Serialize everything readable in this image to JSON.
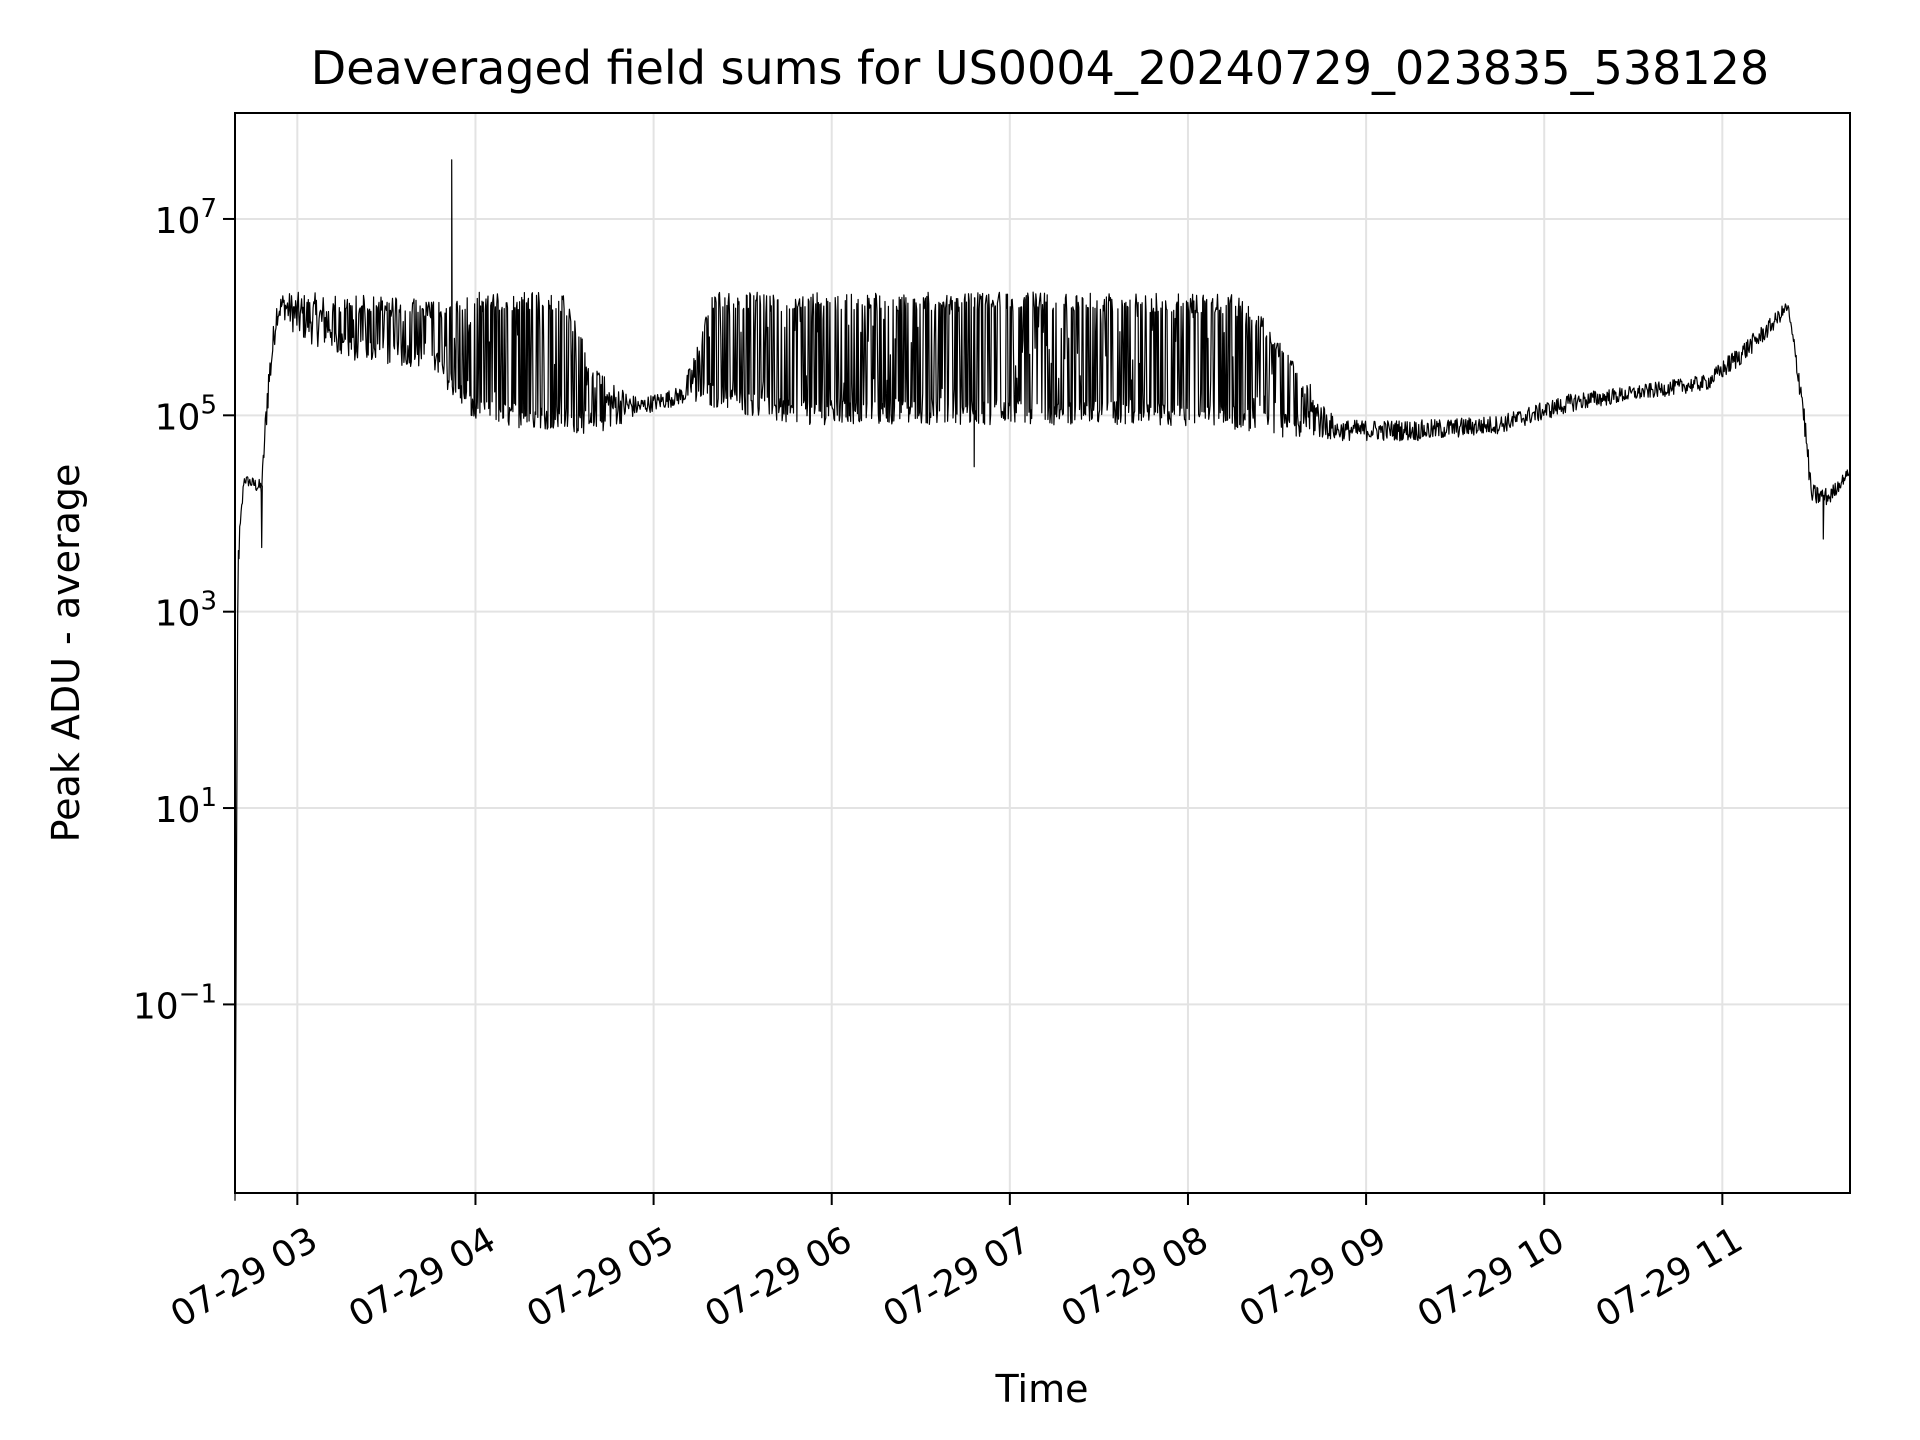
{
  "chart_data": {
    "type": "line",
    "title": "Deaveraged field sums for US0004_20240729_023835_538128",
    "xlabel": "Time",
    "ylabel": "Peak ADU - average",
    "yscale": "log",
    "ylim": [
      0.0012,
      120000000
    ],
    "xlim": [
      "2024-07-29 02:39",
      "2024-07-29 11:43"
    ],
    "grid": true,
    "line_color": "#000000",
    "x_ticks": [
      {
        "value": "2024-07-29 03:00",
        "label": "07-29 03"
      },
      {
        "value": "2024-07-29 04:00",
        "label": "07-29 04"
      },
      {
        "value": "2024-07-29 05:00",
        "label": "07-29 05"
      },
      {
        "value": "2024-07-29 06:00",
        "label": "07-29 06"
      },
      {
        "value": "2024-07-29 07:00",
        "label": "07-29 07"
      },
      {
        "value": "2024-07-29 08:00",
        "label": "07-29 08"
      },
      {
        "value": "2024-07-29 09:00",
        "label": "07-29 09"
      },
      {
        "value": "2024-07-29 10:00",
        "label": "07-29 10"
      },
      {
        "value": "2024-07-29 11:00",
        "label": "07-29 11"
      }
    ],
    "y_ticks": [
      {
        "value": 0.1,
        "base": "10",
        "exp": "−1"
      },
      {
        "value": 10,
        "base": "10",
        "exp": "1"
      },
      {
        "value": 1000,
        "base": "10",
        "exp": "3"
      },
      {
        "value": 100000,
        "base": "10",
        "exp": "5"
      },
      {
        "value": 10000000,
        "base": "10",
        "exp": "7"
      }
    ],
    "series": [
      {
        "envelope": [
          {
            "x": "2024-07-29 02:39",
            "base": 0.001,
            "high": 0.001
          },
          {
            "x": "2024-07-29 02:40",
            "base": 2000,
            "high": 5000
          },
          {
            "x": "2024-07-29 02:42",
            "base": 20000,
            "high": 25000
          },
          {
            "x": "2024-07-29 02:48",
            "base": 15000,
            "high": 22000
          },
          {
            "x": "2024-07-29 02:50",
            "base": 100000,
            "high": 300000
          },
          {
            "x": "2024-07-29 02:53",
            "base": 800000,
            "high": 1500000
          },
          {
            "x": "2024-07-29 02:55",
            "base": 1000000,
            "high": 1800000
          },
          {
            "x": "2024-07-29 03:00",
            "base": 600000,
            "high": 1800000
          },
          {
            "x": "2024-07-29 03:20",
            "base": 350000,
            "high": 1700000
          },
          {
            "x": "2024-07-29 03:45",
            "base": 300000,
            "high": 1500000
          },
          {
            "x": "2024-07-29 04:00",
            "base": 80000,
            "high": 1800000
          },
          {
            "x": "2024-07-29 04:30",
            "base": 70000,
            "high": 1800000
          },
          {
            "x": "2024-07-29 04:40",
            "base": 60000,
            "high": 300000
          },
          {
            "x": "2024-07-29 04:55",
            "base": 100000,
            "high": 150000
          },
          {
            "x": "2024-07-29 05:10",
            "base": 130000,
            "high": 200000
          },
          {
            "x": "2024-07-29 05:20",
            "base": 120000,
            "high": 1800000
          },
          {
            "x": "2024-07-29 05:45",
            "base": 80000,
            "high": 1800000
          },
          {
            "x": "2024-07-29 06:30",
            "base": 80000,
            "high": 1800000
          },
          {
            "x": "2024-07-29 07:30",
            "base": 80000,
            "high": 1800000
          },
          {
            "x": "2024-07-29 08:20",
            "base": 70000,
            "high": 1700000
          },
          {
            "x": "2024-07-29 08:30",
            "base": 60000,
            "high": 600000
          },
          {
            "x": "2024-07-29 08:50",
            "base": 55000,
            "high": 90000
          },
          {
            "x": "2024-07-29 09:20",
            "base": 55000,
            "high": 90000
          },
          {
            "x": "2024-07-29 09:45",
            "base": 65000,
            "high": 100000
          },
          {
            "x": "2024-07-29 10:10",
            "base": 110000,
            "high": 170000
          },
          {
            "x": "2024-07-29 10:30",
            "base": 140000,
            "high": 200000
          },
          {
            "x": "2024-07-29 10:55",
            "base": 180000,
            "high": 260000
          },
          {
            "x": "2024-07-29 11:05",
            "base": 300000,
            "high": 500000
          },
          {
            "x": "2024-07-29 11:15",
            "base": 600000,
            "high": 900000
          },
          {
            "x": "2024-07-29 11:22",
            "base": 1100000,
            "high": 1500000
          },
          {
            "x": "2024-07-29 11:27",
            "base": 100000,
            "high": 200000
          },
          {
            "x": "2024-07-29 11:30",
            "base": 12000,
            "high": 20000
          },
          {
            "x": "2024-07-29 11:36",
            "base": 12000,
            "high": 18000
          },
          {
            "x": "2024-07-29 11:43",
            "base": 25000,
            "high": 30000
          }
        ],
        "notable_points": [
          {
            "x": "2024-07-29 03:52",
            "y": 40000000,
            "note": "maximum spike"
          },
          {
            "x": "2024-07-29 02:48",
            "y": 4500,
            "note": "dip"
          },
          {
            "x": "2024-07-29 11:34",
            "y": 5500,
            "note": "dip"
          },
          {
            "x": "2024-07-29 06:48",
            "y": 30000,
            "note": "dip"
          }
        ]
      }
    ]
  }
}
